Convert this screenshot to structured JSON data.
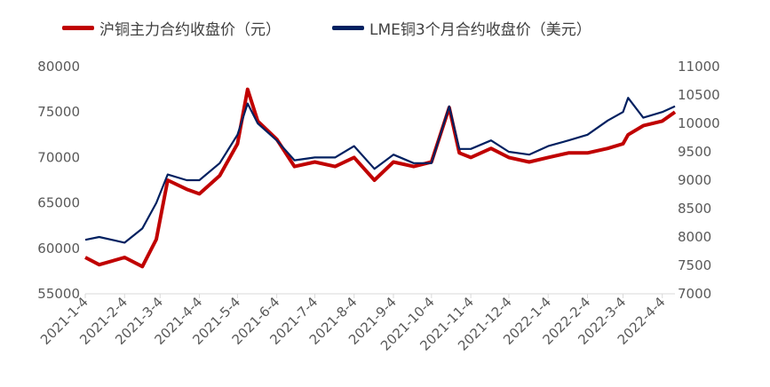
{
  "chart_data": {
    "type": "line",
    "title": "",
    "xlabel": "",
    "ylabel": "",
    "y2label": "",
    "x_tick_labels": [
      "2021-1-4",
      "2021-2-4",
      "2021-3-4",
      "2021-4-4",
      "2021-5-4",
      "2021-6-4",
      "2021-7-4",
      "2021-8-4",
      "2021-9-4",
      "2021-10-4",
      "2021-11-4",
      "2021-12-4",
      "2022-1-4",
      "2022-2-4",
      "2022-3-4",
      "2022-4-4"
    ],
    "ylim": [
      55000,
      80000
    ],
    "y_ticks": [
      55000,
      60000,
      65000,
      70000,
      75000,
      80000
    ],
    "y2lim": [
      7000,
      11000
    ],
    "y2_ticks": [
      7000,
      7500,
      8000,
      8500,
      9000,
      9500,
      10000,
      10500,
      11000
    ],
    "legend_position": "top",
    "grid": false,
    "x": [
      "2021-01-04",
      "2021-01-15",
      "2021-02-04",
      "2021-02-18",
      "2021-03-01",
      "2021-03-10",
      "2021-03-25",
      "2021-04-04",
      "2021-04-20",
      "2021-05-04",
      "2021-05-12",
      "2021-05-20",
      "2021-06-04",
      "2021-06-18",
      "2021-07-04",
      "2021-07-20",
      "2021-08-04",
      "2021-08-20",
      "2021-09-04",
      "2021-09-20",
      "2021-10-04",
      "2021-10-18",
      "2021-10-26",
      "2021-11-04",
      "2021-11-20",
      "2021-12-04",
      "2021-12-20",
      "2022-01-04",
      "2022-01-20",
      "2022-02-04",
      "2022-02-20",
      "2022-03-04",
      "2022-03-08",
      "2022-03-20",
      "2022-04-04",
      "2022-04-14"
    ],
    "series": [
      {
        "name": "沪铜主力合约收盘价（元）",
        "axis": "left",
        "color": "#C00000",
        "values": [
          59000,
          58200,
          59000,
          58000,
          61000,
          67500,
          66500,
          66000,
          68000,
          71500,
          77500,
          74000,
          72000,
          69000,
          69500,
          69000,
          70000,
          67500,
          69500,
          69000,
          69500,
          75500,
          70500,
          70000,
          71000,
          70000,
          69500,
          70000,
          70500,
          70500,
          71000,
          71500,
          72500,
          73500,
          74000,
          75000
        ]
      },
      {
        "name": "LME铜3个月合约收盘价（美元）",
        "axis": "right",
        "color": "#002060",
        "values": [
          7950,
          8000,
          7900,
          8150,
          8600,
          9100,
          9000,
          9000,
          9300,
          9800,
          10350,
          10000,
          9700,
          9350,
          9400,
          9400,
          9600,
          9200,
          9450,
          9300,
          9300,
          10300,
          9550,
          9550,
          9700,
          9500,
          9450,
          9600,
          9700,
          9800,
          10050,
          10200,
          10450,
          10100,
          10200,
          10300
        ]
      }
    ]
  }
}
